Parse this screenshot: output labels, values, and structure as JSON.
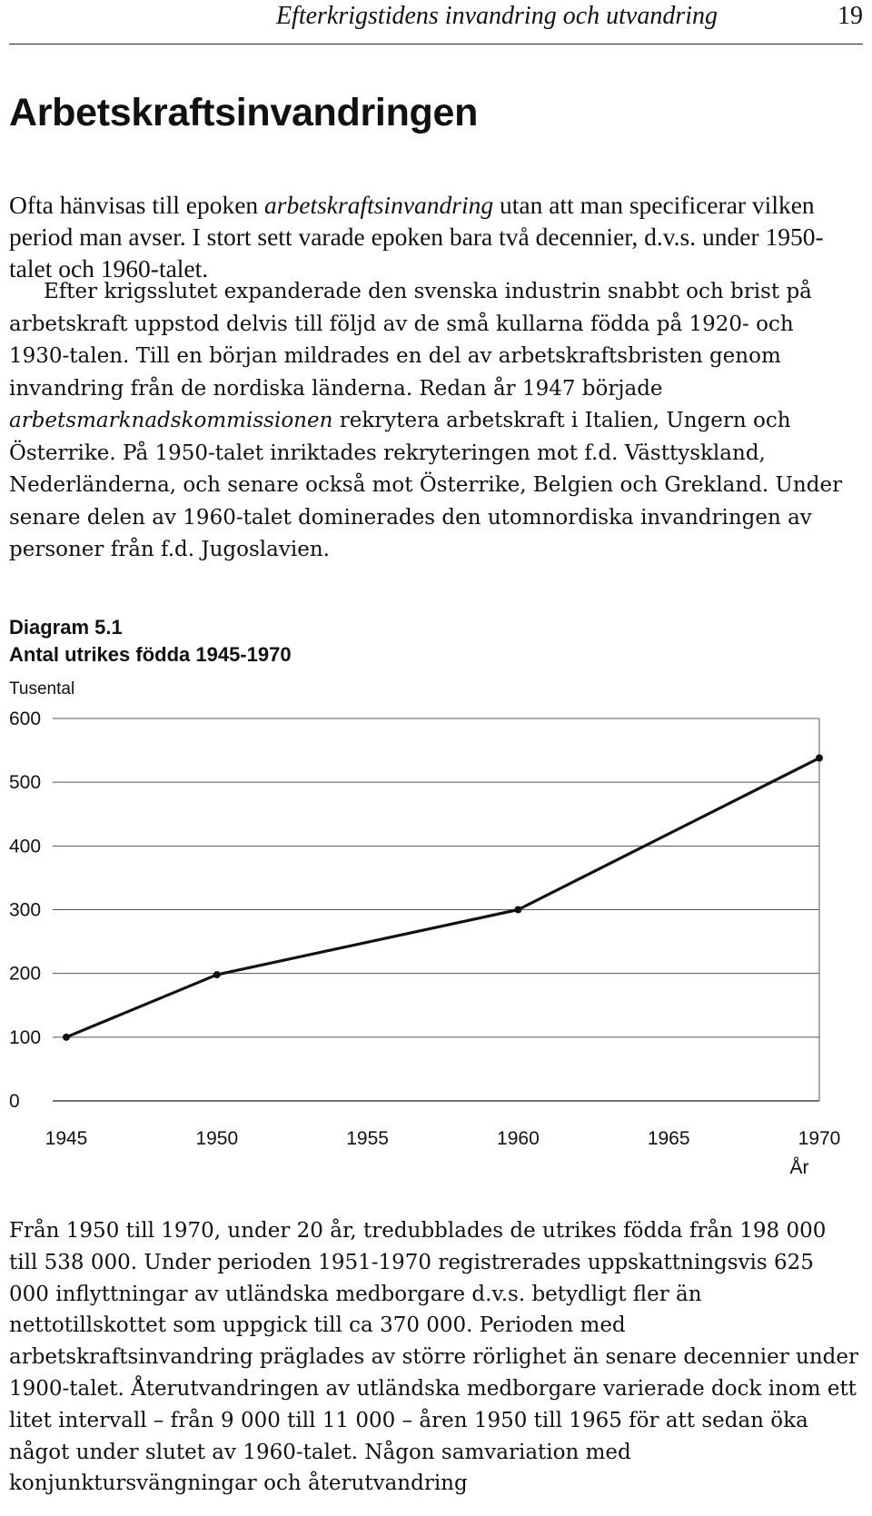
{
  "header": {
    "running_title": "Efterkrigstidens invandring  och utvandring",
    "page_number": "19"
  },
  "section_title": "Arbetskraftsinvandringen",
  "intro": {
    "p1": "Ofta hänvisas till epoken ",
    "p1_italic": "arbetskraftsinvandring",
    "p2": " utan att man specificerar vilken period man avser. I stort sett varade epoken bara två decennier, d.v.s. under 1950-talet och 1960-talet."
  },
  "body": {
    "p1": "Efter krigsslutet expanderade den svenska industrin snabbt och brist på arbetskraft uppstod delvis till följd av de små kullarna födda på 1920- och 1930-talen. Till en början mildrades en del av arbetskraftsbristen genom invandring från de nordiska länderna. Redan år 1947 började ",
    "p1_italic": "arbetsmarknadskommissionen",
    "p2": " rekrytera arbetskraft i Italien, Ungern och Österrike. På 1950-talet inriktades rekryteringen mot f.d. Västtyskland, Nederländerna, och senare också mot Österrike, Belgien och Grekland. Under senare delen av 1960-talet dominerades den utomnordiska invandringen av personer från f.d. Jugoslavien."
  },
  "figure": {
    "number": "Diagram 5.1",
    "title": "Antal utrikes födda 1945-1970",
    "unit": "Tusental",
    "xlabel": "År"
  },
  "chart_data": {
    "type": "line",
    "title": "Antal utrikes födda 1945-1970",
    "ylabel": "Tusental",
    "xlabel": "År",
    "x": [
      1945,
      1950,
      1960,
      1970
    ],
    "values": [
      100,
      198,
      300,
      538
    ],
    "xticks": [
      1945,
      1950,
      1955,
      1960,
      1965,
      1970
    ],
    "yticks": [
      0,
      100,
      200,
      300,
      400,
      500,
      600
    ],
    "xlim": [
      1945,
      1970
    ],
    "ylim": [
      0,
      600
    ],
    "grid": "horizontal",
    "line_color": "#111111"
  },
  "closing": {
    "text": "Från 1950 till 1970, under 20 år, tredubblades de utrikes födda från 198 000 till 538 000. Under perioden 1951-1970 registrerades uppskattningsvis 625 000 inflyttningar av utländska medborgare d.v.s. betydligt fler än nettotillskottet som uppgick till ca 370 000. Perioden med arbetskraftsinvandring präglades av större rörlighet än senare decennier under 1900-talet. Återutvandringen av utländska medborgare varierade dock inom ett litet intervall – från 9 000 till 11 000 – åren 1950 till 1965 för att sedan öka något under slutet av 1960-talet. Någon samvariation med konjunktursvängningar och återutvandring"
  }
}
